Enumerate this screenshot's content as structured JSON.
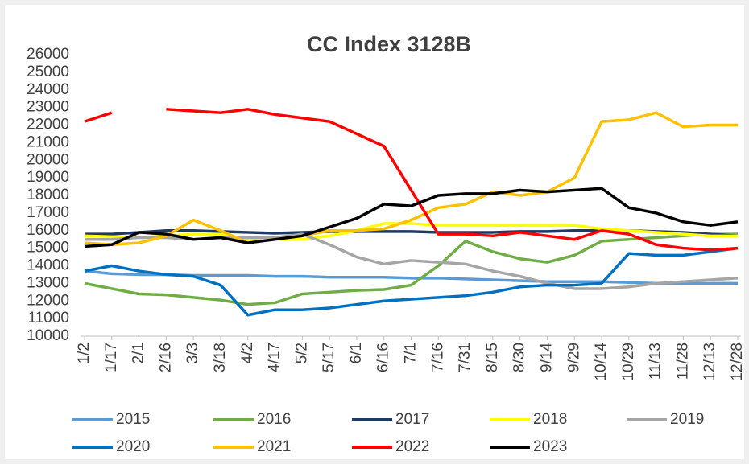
{
  "chart_data": {
    "type": "line",
    "title": "CC  Index  3128B",
    "categories": [
      "1/2",
      "1/17",
      "2/1",
      "2/16",
      "3/3",
      "3/18",
      "4/2",
      "4/17",
      "5/2",
      "5/17",
      "6/1",
      "6/16",
      "7/1",
      "7/16",
      "7/31",
      "8/15",
      "8/30",
      "9/14",
      "9/29",
      "10/14",
      "10/29",
      "11/13",
      "11/28",
      "12/13",
      "12/28"
    ],
    "ylim": [
      10000,
      26000
    ],
    "yticks": [
      10000,
      11000,
      12000,
      13000,
      14000,
      15000,
      16000,
      17000,
      18000,
      19000,
      20000,
      21000,
      22000,
      23000,
      24000,
      25000,
      26000
    ],
    "grid": false,
    "legend": "bottom",
    "series": [
      {
        "name": "2015",
        "color": "#5b9bd5",
        "values": [
          13700,
          13550,
          13500,
          13500,
          13450,
          13450,
          13450,
          13400,
          13400,
          13350,
          13350,
          13350,
          13300,
          13300,
          13250,
          13200,
          13150,
          13100,
          13100,
          13100,
          13050,
          13000,
          13000,
          13000,
          13000
        ]
      },
      {
        "name": "2016",
        "color": "#70ad47",
        "values": [
          13000,
          12700,
          12400,
          12350,
          12200,
          12050,
          11800,
          11900,
          12400,
          12500,
          12600,
          12650,
          12900,
          14000,
          15400,
          14800,
          14400,
          14200,
          14600,
          15400,
          15500,
          15600,
          15700,
          15800,
          15800
        ]
      },
      {
        "name": "2017",
        "color": "#1f3864",
        "values": [
          15800,
          15800,
          15900,
          16000,
          16000,
          15950,
          15900,
          15850,
          15900,
          15950,
          15950,
          15950,
          15950,
          15900,
          15900,
          15900,
          15950,
          15950,
          16000,
          16000,
          16000,
          15950,
          15900,
          15800,
          15700
        ]
      },
      {
        "name": "2018",
        "color": "#ffff00",
        "values": [
          15700,
          15650,
          15600,
          15700,
          15800,
          15800,
          15500,
          15500,
          15500,
          15700,
          16000,
          16400,
          16400,
          16300,
          16300,
          16300,
          16300,
          16300,
          16300,
          16100,
          16000,
          15900,
          15800,
          15700,
          15700
        ]
      },
      {
        "name": "2019",
        "color": "#a5a5a5",
        "values": [
          15500,
          15500,
          15600,
          15600,
          15500,
          15600,
          15600,
          15600,
          15800,
          15200,
          14500,
          14100,
          14300,
          14200,
          14100,
          13700,
          13400,
          13000,
          12700,
          12700,
          12800,
          13000,
          13100,
          13200,
          13300
        ]
      },
      {
        "name": "2020",
        "color": "#0070c0",
        "values": [
          13700,
          14000,
          13700,
          13500,
          13400,
          12900,
          11200,
          11500,
          11500,
          11600,
          11800,
          12000,
          12100,
          12200,
          12300,
          12500,
          12800,
          12900,
          12900,
          13000,
          14700,
          14600,
          14600,
          14800,
          15000
        ]
      },
      {
        "name": "2021",
        "color": "#ffc000",
        "values": [
          15300,
          15200,
          15300,
          15700,
          16600,
          16000,
          15300,
          15500,
          15700,
          16000,
          16000,
          16100,
          16600,
          17300,
          17500,
          18200,
          18000,
          18200,
          19000,
          22200,
          22300,
          22700,
          21900,
          22000,
          22000
        ]
      },
      {
        "name": "2022",
        "color": "#ff0000",
        "values": [
          22200,
          22700,
          null,
          22900,
          22800,
          22700,
          22900,
          22600,
          22400,
          22200,
          21500,
          20800,
          18300,
          15800,
          15800,
          15700,
          15900,
          15700,
          15500,
          16000,
          15800,
          15200,
          15000,
          14900,
          15000
        ]
      },
      {
        "name": "2023",
        "color": "#000000",
        "values": [
          15100,
          15200,
          15900,
          15800,
          15500,
          15600,
          15300,
          15500,
          15700,
          16200,
          16700,
          17500,
          17400,
          18000,
          18100,
          18100,
          18300,
          18200,
          18300,
          18400,
          17300,
          17000,
          16500,
          16300,
          16500
        ]
      }
    ]
  }
}
